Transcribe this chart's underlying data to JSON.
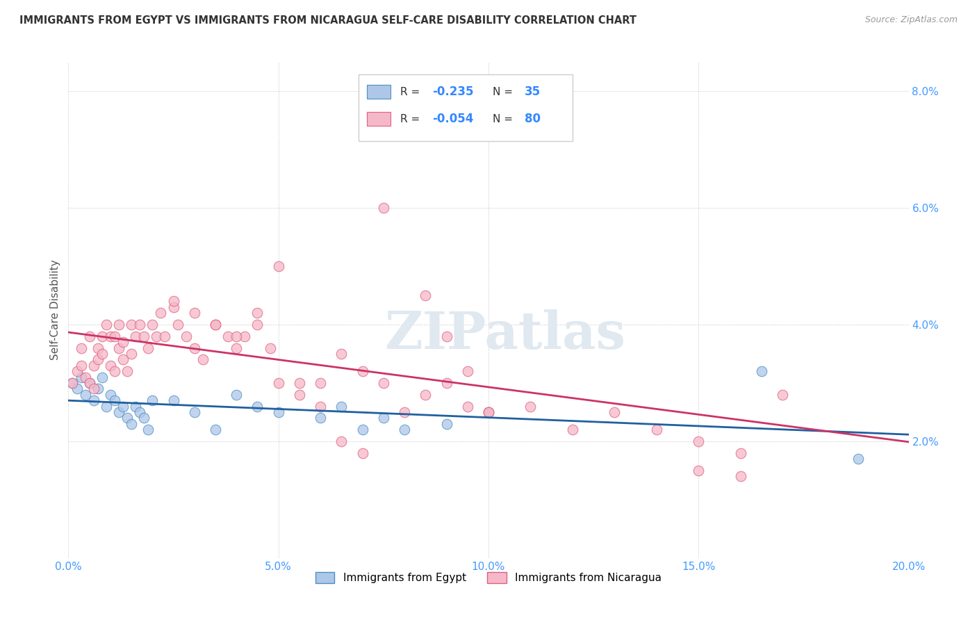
{
  "title": "IMMIGRANTS FROM EGYPT VS IMMIGRANTS FROM NICARAGUA SELF-CARE DISABILITY CORRELATION CHART",
  "source": "Source: ZipAtlas.com",
  "ylabel": "Self-Care Disability",
  "xlim": [
    0.0,
    0.2
  ],
  "ylim": [
    0.0,
    0.085
  ],
  "xticks": [
    0.0,
    0.05,
    0.1,
    0.15,
    0.2
  ],
  "yticks": [
    0.0,
    0.02,
    0.04,
    0.06,
    0.08
  ],
  "xticklabels": [
    "0.0%",
    "5.0%",
    "10.0%",
    "15.0%",
    "20.0%"
  ],
  "yticklabels": [
    "",
    "2.0%",
    "4.0%",
    "6.0%",
    "8.0%"
  ],
  "egypt_color": "#aec6e8",
  "egypt_edge_color": "#4a90c4",
  "egypt_line_color": "#2060a0",
  "nicaragua_color": "#f5b8c8",
  "nicaragua_edge_color": "#e06080",
  "nicaragua_line_color": "#cc3366",
  "egypt_R": "-0.235",
  "egypt_N": "35",
  "nicaragua_R": "-0.054",
  "nicaragua_N": "80",
  "legend_label_egypt": "Immigrants from Egypt",
  "legend_label_nicaragua": "Immigrants from Nicaragua",
  "watermark": "ZIPatlas",
  "tick_color": "#4499ff",
  "title_color": "#333333",
  "source_color": "#999999",
  "ylabel_color": "#555555",
  "egypt_x": [
    0.001,
    0.002,
    0.003,
    0.004,
    0.005,
    0.006,
    0.007,
    0.008,
    0.009,
    0.01,
    0.011,
    0.012,
    0.013,
    0.014,
    0.015,
    0.016,
    0.017,
    0.018,
    0.019,
    0.02,
    0.025,
    0.03,
    0.035,
    0.04,
    0.045,
    0.05,
    0.06,
    0.065,
    0.07,
    0.075,
    0.08,
    0.09,
    0.1,
    0.165,
    0.188
  ],
  "egypt_y": [
    0.03,
    0.029,
    0.031,
    0.028,
    0.03,
    0.027,
    0.029,
    0.031,
    0.026,
    0.028,
    0.027,
    0.025,
    0.026,
    0.024,
    0.023,
    0.026,
    0.025,
    0.024,
    0.022,
    0.027,
    0.027,
    0.025,
    0.022,
    0.028,
    0.026,
    0.025,
    0.024,
    0.026,
    0.022,
    0.024,
    0.022,
    0.023,
    0.025,
    0.032,
    0.017
  ],
  "nicaragua_x": [
    0.001,
    0.002,
    0.003,
    0.003,
    0.004,
    0.005,
    0.005,
    0.006,
    0.006,
    0.007,
    0.007,
    0.008,
    0.008,
    0.009,
    0.01,
    0.01,
    0.011,
    0.011,
    0.012,
    0.012,
    0.013,
    0.013,
    0.014,
    0.015,
    0.015,
    0.016,
    0.017,
    0.018,
    0.019,
    0.02,
    0.021,
    0.022,
    0.023,
    0.025,
    0.026,
    0.028,
    0.03,
    0.032,
    0.035,
    0.038,
    0.04,
    0.042,
    0.045,
    0.048,
    0.05,
    0.055,
    0.06,
    0.065,
    0.07,
    0.075,
    0.08,
    0.085,
    0.09,
    0.095,
    0.1,
    0.11,
    0.12,
    0.13,
    0.14,
    0.15,
    0.16,
    0.025,
    0.03,
    0.035,
    0.04,
    0.045,
    0.05,
    0.055,
    0.06,
    0.065,
    0.07,
    0.075,
    0.08,
    0.085,
    0.09,
    0.095,
    0.1,
    0.15,
    0.16,
    0.17
  ],
  "nicaragua_y": [
    0.03,
    0.032,
    0.033,
    0.036,
    0.031,
    0.03,
    0.038,
    0.029,
    0.033,
    0.034,
    0.036,
    0.038,
    0.035,
    0.04,
    0.038,
    0.033,
    0.032,
    0.038,
    0.036,
    0.04,
    0.034,
    0.037,
    0.032,
    0.035,
    0.04,
    0.038,
    0.04,
    0.038,
    0.036,
    0.04,
    0.038,
    0.042,
    0.038,
    0.043,
    0.04,
    0.038,
    0.036,
    0.034,
    0.04,
    0.038,
    0.036,
    0.038,
    0.04,
    0.036,
    0.03,
    0.028,
    0.03,
    0.035,
    0.032,
    0.03,
    0.025,
    0.028,
    0.03,
    0.026,
    0.025,
    0.026,
    0.022,
    0.025,
    0.022,
    0.02,
    0.018,
    0.044,
    0.042,
    0.04,
    0.038,
    0.042,
    0.05,
    0.03,
    0.026,
    0.02,
    0.018,
    0.06,
    0.073,
    0.045,
    0.038,
    0.032,
    0.025,
    0.015,
    0.014,
    0.028
  ]
}
